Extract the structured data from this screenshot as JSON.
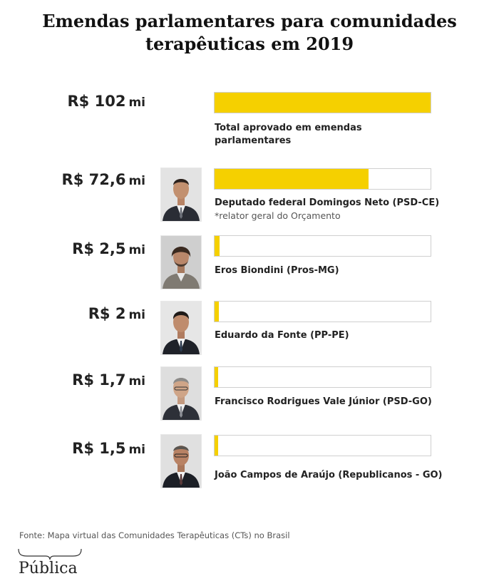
{
  "title": {
    "line1": "Emendas parlamentares para comunidades",
    "line2": "terapêuticas em 2019"
  },
  "colors": {
    "bar": "#f5d000",
    "frame": "#cfcfcf"
  },
  "chart_data": {
    "type": "bar",
    "orientation": "horizontal",
    "title": "Emendas parlamentares para comunidades terapêuticas em 2019",
    "unit": "R$ mi",
    "xlim": [
      0,
      102
    ],
    "categories": [
      "Total aprovado em emendas parlamentares",
      "Deputado federal Domingos Neto (PSD-CE)",
      "Eros Biondini (Pros-MG)",
      "Eduardo da Fonte (PP-PE)",
      "Francisco Rodrigues Vale Júnior  (PSD-GO)",
      "João Campos de Araújo (Republicanos - GO)"
    ],
    "values": [
      102,
      72.6,
      2.5,
      2,
      1.7,
      1.5
    ]
  },
  "rows": [
    {
      "amount": "R$ 102",
      "unit": "mi",
      "name_line1": "Total aprovado em emendas",
      "name_line2": "parlamentares",
      "photo": false
    },
    {
      "amount": "R$ 72,6",
      "unit": "mi",
      "name_line1": "Deputado federal Domingos Neto (PSD-CE)",
      "note": "*relator geral do Orçamento",
      "photo": "portrait-domingos-neto"
    },
    {
      "amount": "R$ 2,5",
      "unit": "mi",
      "name_line1": "Eros Biondini (Pros-MG)",
      "photo": "portrait-eros-biondini"
    },
    {
      "amount": "R$ 2",
      "unit": "mi",
      "name_line1": "Eduardo da Fonte (PP-PE)",
      "photo": "portrait-eduardo-da-fonte"
    },
    {
      "amount": "R$ 1,7",
      "unit": "mi",
      "name_line1": "Francisco Rodrigues Vale Júnior  (PSD-GO)",
      "photo": "portrait-francisco-vale-junior"
    },
    {
      "amount": "R$ 1,5",
      "unit": "mi",
      "name_line1": "João Campos de Araújo (Republicanos - GO)",
      "photo": "portrait-joao-campos"
    }
  ],
  "source": "Fonte: Mapa virtual das Comunidades Terapêuticas (CTs) no Brasil",
  "logo": "Pública"
}
